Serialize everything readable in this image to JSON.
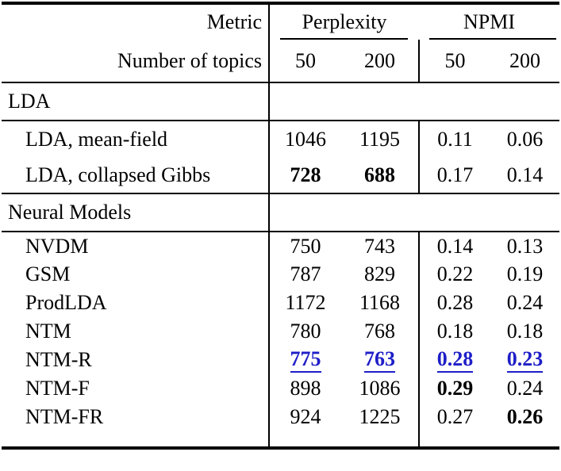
{
  "table": {
    "header": {
      "metric_label": "Metric",
      "topics_label": "Number of topics",
      "group_perplexity": "Perplexity",
      "group_npmi": "NPMI",
      "topic_counts": [
        "50",
        "200",
        "50",
        "200"
      ]
    },
    "lda": {
      "section_label": "LDA",
      "rows": [
        {
          "label": "LDA, mean-field",
          "v": [
            "1046",
            "1195",
            "0.11",
            "0.06"
          ]
        },
        {
          "label": "LDA, collapsed Gibbs",
          "v": [
            "728",
            "688",
            "0.17",
            "0.14"
          ]
        }
      ]
    },
    "neural": {
      "section_label": "Neural Models",
      "rows": [
        {
          "label": "NVDM",
          "v": [
            "750",
            "743",
            "0.14",
            "0.13"
          ]
        },
        {
          "label": "GSM",
          "v": [
            "787",
            "829",
            "0.22",
            "0.19"
          ]
        },
        {
          "label": "ProdLDA",
          "v": [
            "1172",
            "1168",
            "0.28",
            "0.24"
          ]
        },
        {
          "label": "NTM",
          "v": [
            "780",
            "768",
            "0.18",
            "0.18"
          ]
        },
        {
          "label": "NTM-R",
          "v": [
            "775",
            "763",
            "0.28",
            "0.23"
          ]
        },
        {
          "label": "NTM-F",
          "v": [
            "898",
            "1086",
            "0.29",
            "0.24"
          ]
        },
        {
          "label": "NTM-FR",
          "v": [
            "924",
            "1225",
            "0.27",
            "0.26"
          ]
        }
      ]
    },
    "styles": {
      "highlight_blue": "#1e1ec8",
      "rule_color": "#000000"
    }
  }
}
